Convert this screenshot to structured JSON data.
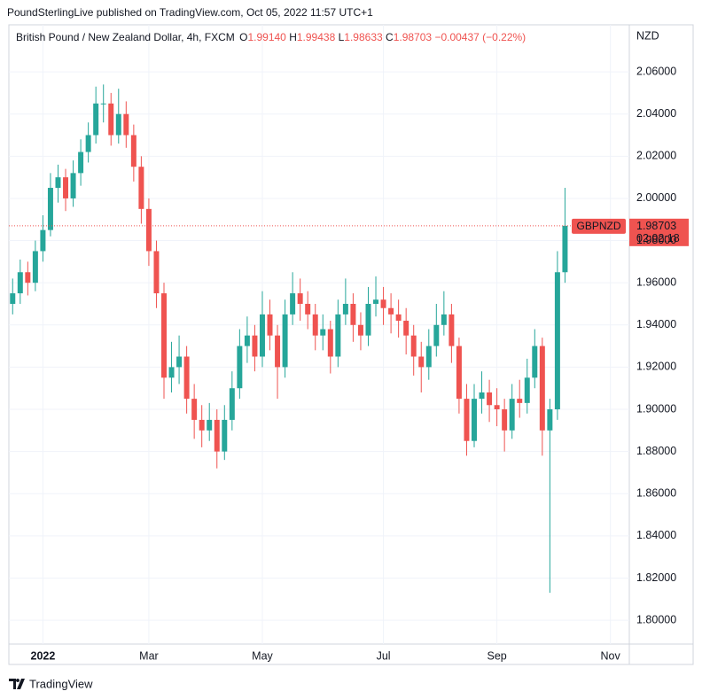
{
  "header": "PoundSterlingLive published on TradingView.com, Oct 05, 2022 11:57 UTC+1",
  "footer": "TradingView",
  "chart_data": {
    "type": "candlestick",
    "legend": {
      "symbol": "British Pound / New Zealand Dollar, 4h, FXCM",
      "open_label": "O",
      "open": "1.99140",
      "high_label": "H",
      "high": "1.99438",
      "low_label": "L",
      "low": "1.98633",
      "close_label": "C",
      "close": "1.98703",
      "change": "−0.00437 (−0.22%)"
    },
    "currency": "NZD",
    "symbol_tag": "GBPNZD",
    "last_price": {
      "value": 1.98703,
      "label": "1.98703"
    },
    "countdown": "02:02:18",
    "up_color": "#26a69a",
    "down_color": "#ef5350",
    "grid": true,
    "ylim": [
      1.7887,
      2.0823
    ],
    "yticks": [
      {
        "value": 1.8,
        "label": "1.80000"
      },
      {
        "value": 1.82,
        "label": "1.82000"
      },
      {
        "value": 1.84,
        "label": "1.84000"
      },
      {
        "value": 1.86,
        "label": "1.86000"
      },
      {
        "value": 1.88,
        "label": "1.88000"
      },
      {
        "value": 1.9,
        "label": "1.90000"
      },
      {
        "value": 1.92,
        "label": "1.92000"
      },
      {
        "value": 1.94,
        "label": "1.94000"
      },
      {
        "value": 1.96,
        "label": "1.96000"
      },
      {
        "value": 1.98,
        "label": "1.98000"
      },
      {
        "value": 2.0,
        "label": "2.00000"
      },
      {
        "value": 2.02,
        "label": "2.02000"
      },
      {
        "value": 2.04,
        "label": "2.04000"
      },
      {
        "value": 2.06,
        "label": "2.06000"
      }
    ],
    "categories": [
      null,
      null,
      null,
      null,
      "2022",
      null,
      null,
      null,
      null,
      null,
      null,
      null,
      null,
      null,
      null,
      null,
      null,
      null,
      "Mar",
      null,
      null,
      null,
      null,
      null,
      null,
      null,
      null,
      null,
      null,
      null,
      null,
      null,
      null,
      "May",
      null,
      null,
      null,
      null,
      null,
      null,
      null,
      null,
      null,
      null,
      null,
      null,
      null,
      null,
      null,
      "Jul",
      null,
      null,
      null,
      null,
      null,
      null,
      null,
      null,
      null,
      null,
      null,
      null,
      null,
      null,
      "Sep",
      null,
      null,
      null,
      null,
      null,
      null,
      null,
      null,
      null,
      null,
      null,
      null,
      null,
      null,
      "Nov",
      null,
      null
    ],
    "open": [
      1.95,
      1.955,
      1.965,
      1.96,
      1.975,
      1.985,
      2.005,
      2.01,
      2.0,
      2.012,
      2.022,
      2.03,
      2.045,
      2.045,
      2.03,
      2.04,
      2.03,
      2.015,
      1.995,
      1.975,
      1.955,
      1.915,
      1.92,
      1.925,
      1.905,
      1.895,
      1.89,
      1.895,
      1.88,
      1.895,
      1.91,
      1.93,
      1.935,
      1.925,
      1.945,
      1.935,
      1.92,
      1.945,
      1.955,
      1.95,
      1.945,
      1.935,
      1.938,
      1.925,
      1.945,
      1.95,
      1.94,
      1.935,
      1.95,
      1.952,
      1.948,
      1.945,
      1.942,
      1.935,
      1.925,
      1.92,
      1.93,
      1.94,
      1.945,
      1.93,
      1.905,
      1.885,
      1.905,
      1.908,
      1.902,
      1.9,
      1.89,
      1.905,
      1.903,
      1.915,
      1.93,
      1.89,
      1.9,
      1.965,
      null,
      null,
      null,
      null,
      null,
      null,
      null,
      null
    ],
    "high": [
      1.962,
      1.971,
      1.97,
      1.98,
      1.992,
      2.012,
      2.016,
      2.014,
      2.018,
      2.028,
      2.036,
      2.053,
      2.054,
      2.05,
      2.052,
      2.046,
      2.035,
      2.02,
      2.0,
      1.98,
      1.96,
      1.932,
      1.935,
      1.93,
      1.912,
      1.902,
      1.903,
      1.9,
      1.902,
      1.918,
      1.938,
      1.944,
      1.94,
      1.956,
      1.952,
      1.94,
      1.952,
      1.965,
      1.962,
      1.956,
      1.95,
      1.945,
      1.942,
      1.952,
      1.962,
      1.955,
      1.946,
      1.958,
      1.963,
      1.958,
      1.955,
      1.952,
      1.948,
      1.94,
      1.932,
      1.938,
      1.95,
      1.956,
      1.95,
      1.934,
      1.912,
      1.912,
      1.918,
      1.914,
      1.91,
      1.905,
      1.912,
      1.914,
      1.924,
      1.938,
      1.934,
      1.905,
      1.975,
      2.005,
      null,
      null,
      null,
      null,
      null,
      null,
      null,
      null
    ],
    "low": [
      1.945,
      1.95,
      1.954,
      1.956,
      1.97,
      1.982,
      1.998,
      1.994,
      1.996,
      2.006,
      2.017,
      2.026,
      2.036,
      2.025,
      2.026,
      2.024,
      2.008,
      1.988,
      1.968,
      1.948,
      1.905,
      1.908,
      1.912,
      1.898,
      1.886,
      1.882,
      1.885,
      1.872,
      1.876,
      1.89,
      1.905,
      1.922,
      1.918,
      1.92,
      1.928,
      1.905,
      1.915,
      1.94,
      1.942,
      1.938,
      1.928,
      1.928,
      1.917,
      1.92,
      1.94,
      1.932,
      1.928,
      1.93,
      1.944,
      1.94,
      1.936,
      1.934,
      1.926,
      1.916,
      1.908,
      1.914,
      1.925,
      1.935,
      1.922,
      1.898,
      1.878,
      1.882,
      1.898,
      1.894,
      1.892,
      1.88,
      1.886,
      1.896,
      1.898,
      1.91,
      1.878,
      1.813,
      1.895,
      1.96,
      null,
      null,
      null,
      null,
      null,
      null,
      null,
      null
    ],
    "close": [
      1.955,
      1.965,
      1.96,
      1.975,
      1.985,
      2.005,
      2.01,
      2.0,
      2.012,
      2.022,
      2.03,
      2.045,
      2.045,
      2.03,
      2.04,
      2.03,
      2.015,
      1.995,
      1.975,
      1.955,
      1.915,
      1.92,
      1.925,
      1.905,
      1.895,
      1.89,
      1.895,
      1.88,
      1.895,
      1.91,
      1.93,
      1.935,
      1.925,
      1.945,
      1.935,
      1.92,
      1.945,
      1.955,
      1.95,
      1.945,
      1.935,
      1.938,
      1.925,
      1.945,
      1.95,
      1.94,
      1.935,
      1.95,
      1.952,
      1.948,
      1.945,
      1.942,
      1.935,
      1.925,
      1.92,
      1.93,
      1.94,
      1.945,
      1.93,
      1.905,
      1.885,
      1.905,
      1.908,
      1.902,
      1.9,
      1.89,
      1.905,
      1.903,
      1.915,
      1.93,
      1.89,
      1.9,
      1.965,
      1.98703,
      null,
      null,
      null,
      null,
      null,
      null,
      null,
      null
    ]
  }
}
